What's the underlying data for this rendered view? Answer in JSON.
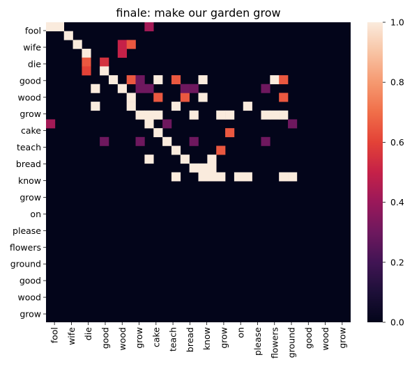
{
  "chart_data": {
    "type": "heatmap",
    "title": "finale: make our garden grow",
    "row_labels": [
      "fool",
      "wife",
      "die",
      "good",
      "wood",
      "grow",
      "cake",
      "teach",
      "bread",
      "know",
      "grow",
      "on",
      "please",
      "flowers",
      "ground",
      "good",
      "wood",
      "grow"
    ],
    "column_labels": [
      "fool",
      "wife",
      "die",
      "good",
      "wood",
      "grow",
      "cake",
      "teach",
      "bread",
      "know",
      "grow",
      "on",
      "please",
      "flowers",
      "ground",
      "good",
      "wood",
      "grow"
    ],
    "colorbar": {
      "min": 0.0,
      "max": 1.0,
      "tick_labels": [
        "0.0",
        "0.2",
        "0.4",
        "0.6",
        "0.8",
        "1.0"
      ]
    },
    "colormap": "rocket",
    "n_rows": 34,
    "n_cols": 34,
    "cells": [
      [
        0,
        0,
        1
      ],
      [
        0,
        1,
        1
      ],
      [
        1,
        2,
        1
      ],
      [
        2,
        3,
        1
      ],
      [
        3,
        4,
        1
      ],
      [
        0,
        11,
        0.42
      ],
      [
        2,
        8,
        0.5
      ],
      [
        2,
        9,
        0.65
      ],
      [
        3,
        8,
        0.5
      ],
      [
        4,
        4,
        0.65
      ],
      [
        5,
        4,
        0.6
      ],
      [
        4,
        6,
        0.55
      ],
      [
        5,
        6,
        1
      ],
      [
        6,
        7,
        1
      ],
      [
        6,
        12,
        1
      ],
      [
        6,
        17,
        1
      ],
      [
        6,
        9,
        0.65
      ],
      [
        6,
        10,
        0.3
      ],
      [
        6,
        14,
        0.65
      ],
      [
        6,
        25,
        1
      ],
      [
        6,
        26,
        0.65
      ],
      [
        7,
        8,
        1
      ],
      [
        7,
        10,
        0.3
      ],
      [
        8,
        9,
        1
      ],
      [
        8,
        12,
        0.65
      ],
      [
        8,
        15,
        0.65
      ],
      [
        8,
        17,
        1
      ],
      [
        8,
        26,
        0.65
      ],
      [
        7,
        16,
        0.3
      ],
      [
        7,
        24,
        0.3
      ],
      [
        7,
        5,
        1
      ],
      [
        7,
        11,
        0.3
      ],
      [
        7,
        15,
        0.3
      ],
      [
        9,
        5,
        1
      ],
      [
        9,
        9,
        1
      ],
      [
        9,
        14,
        1
      ],
      [
        9,
        22,
        1
      ],
      [
        10,
        10,
        1
      ],
      [
        10,
        11,
        1
      ],
      [
        10,
        12,
        1
      ],
      [
        10,
        16,
        1
      ],
      [
        10,
        24,
        1
      ],
      [
        10,
        25,
        1
      ],
      [
        10,
        26,
        1
      ],
      [
        10,
        19,
        1
      ],
      [
        10,
        20,
        1
      ],
      [
        11,
        0,
        0.42
      ],
      [
        11,
        13,
        0.3
      ],
      [
        11,
        27,
        0.3
      ],
      [
        11,
        11,
        1
      ],
      [
        12,
        12,
        1
      ],
      [
        13,
        13,
        1
      ],
      [
        12,
        20,
        0.65
      ],
      [
        14,
        14,
        1
      ],
      [
        15,
        15,
        1
      ],
      [
        16,
        16,
        1
      ],
      [
        17,
        17,
        1
      ],
      [
        13,
        6,
        0.3
      ],
      [
        13,
        10,
        0.3
      ],
      [
        13,
        16,
        0.3
      ],
      [
        13,
        24,
        0.3
      ],
      [
        14,
        19,
        0.65
      ],
      [
        16,
        17,
        1
      ],
      [
        16,
        18,
        1
      ],
      [
        15,
        11,
        1
      ],
      [
        15,
        18,
        1
      ],
      [
        17,
        14,
        1
      ],
      [
        17,
        18,
        1
      ],
      [
        17,
        19,
        1
      ],
      [
        17,
        21,
        1
      ],
      [
        17,
        22,
        1
      ],
      [
        17,
        26,
        1
      ],
      [
        17,
        27,
        1
      ]
    ]
  }
}
